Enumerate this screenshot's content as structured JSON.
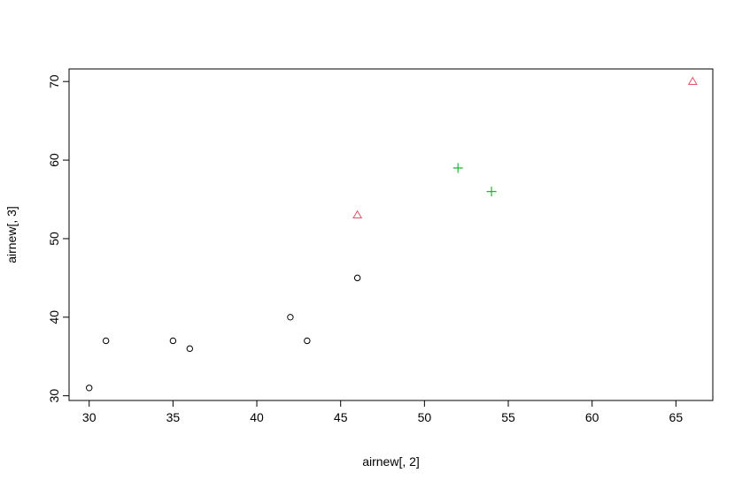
{
  "chart_data": {
    "type": "scatter",
    "title": "",
    "xlabel": "airnew[, 2]",
    "ylabel": "airnew[, 3]",
    "xlim": [
      28.8,
      67.2
    ],
    "ylim": [
      29.4,
      71.6
    ],
    "xticks": [
      30,
      35,
      40,
      45,
      50,
      55,
      60,
      65
    ],
    "yticks": [
      30,
      40,
      50,
      60,
      70
    ],
    "grid": false,
    "legend": "none",
    "series": [
      {
        "marker": "circle",
        "color": "#000000",
        "points": [
          {
            "x": 30,
            "y": 31
          },
          {
            "x": 31,
            "y": 37
          },
          {
            "x": 35,
            "y": 37
          },
          {
            "x": 36,
            "y": 36
          },
          {
            "x": 42,
            "y": 40
          },
          {
            "x": 43,
            "y": 37
          },
          {
            "x": 46,
            "y": 45
          }
        ]
      },
      {
        "marker": "triangle",
        "color": "#DF536B",
        "points": [
          {
            "x": 46,
            "y": 53
          },
          {
            "x": 66,
            "y": 70
          }
        ]
      },
      {
        "marker": "plus",
        "color": "#22B52E",
        "points": [
          {
            "x": 52,
            "y": 59
          },
          {
            "x": 54,
            "y": 56
          }
        ]
      }
    ]
  }
}
